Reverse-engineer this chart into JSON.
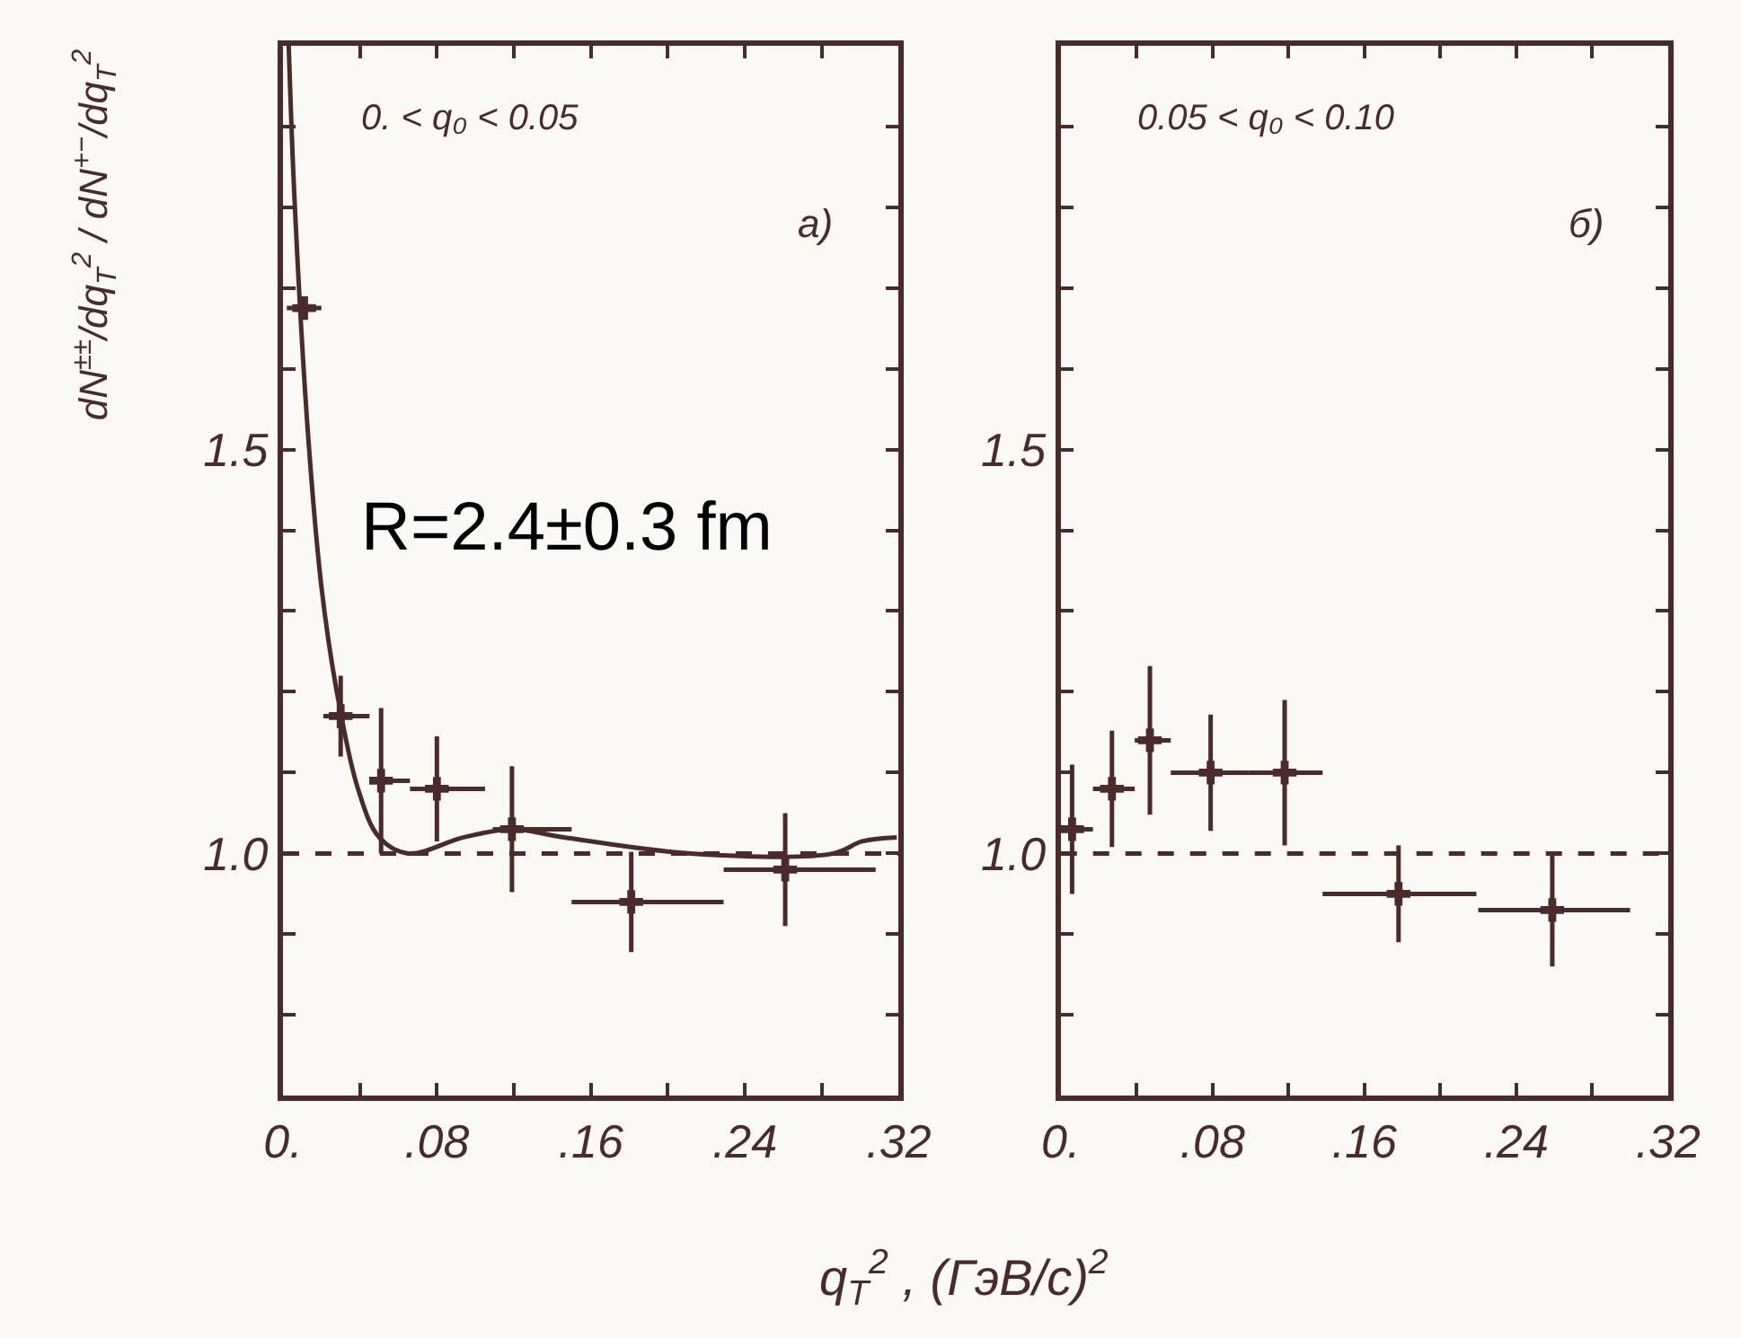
{
  "chart_data": [
    {
      "type": "scatter",
      "ylabel": "dN$^{±±}$/dq$_{T}$$^{2}$ / dN$^{+−}$/dq$_{T}$$^{2}$",
      "xlabel": "q$_{T}$$^{2}$ , (ГэВ/с)$^{2}$",
      "annotations": [
        "0. < q₀ < 0.05",
        "a)",
        "R=2.4±0.3 fm"
      ],
      "xlim": [
        0,
        0.32
      ],
      "ylim": [
        0.7,
        2.0
      ],
      "xticks": [
        {
          "value": 0,
          "label": "0."
        },
        {
          "value": 0.04,
          "label": null
        },
        {
          "value": 0.08,
          "label": ".08"
        },
        {
          "value": 0.12,
          "label": null
        },
        {
          "value": 0.16,
          "label": ".16"
        },
        {
          "value": 0.2,
          "label": null
        },
        {
          "value": 0.24,
          "label": ".24"
        },
        {
          "value": 0.28,
          "label": null
        },
        {
          "value": 0.32,
          "label": ".32"
        }
      ],
      "yticks": [
        {
          "value": 0.8,
          "label": null
        },
        {
          "value": 0.9,
          "label": null
        },
        {
          "value": 1.0,
          "label": "1.0"
        },
        {
          "value": 1.1,
          "label": null
        },
        {
          "value": 1.2,
          "label": null
        },
        {
          "value": 1.3,
          "label": null
        },
        {
          "value": 1.4,
          "label": null
        },
        {
          "value": 1.5,
          "label": "1.5"
        },
        {
          "value": 1.6,
          "label": null
        },
        {
          "value": 1.7,
          "label": null
        },
        {
          "value": 1.8,
          "label": null
        },
        {
          "value": 1.9,
          "label": null
        }
      ],
      "ref_lines": [
        {
          "axis": "y",
          "value": 1.0,
          "label": null,
          "color": "#4a2a2a",
          "line_style": "dashed"
        }
      ],
      "grid": false,
      "series": [
        {
          "marker": "cross",
          "color": "#4a2a2a",
          "x": [
            0.011,
            0.03,
            0.051,
            0.08,
            0.119,
            0.181,
            0.261
          ],
          "values": [
            1.675,
            1.17,
            1.09,
            1.08,
            1.03,
            0.94,
            0.98
          ],
          "errors": [
            null,
            0.05,
            0.09,
            0.065,
            0.078,
            0.062,
            0.07
          ],
          "xerrors": [
            [
              0.002,
              0.02
            ],
            [
              0.021,
              0.045
            ],
            [
              0.045,
              0.066
            ],
            [
              0.066,
              0.105
            ],
            [
              0.109,
              0.15
            ],
            [
              0.15,
              0.229
            ],
            [
              0.229,
              0.308
            ]
          ]
        },
        {
          "type": "line",
          "marker": "none",
          "color": "#4a2a2a",
          "line_style": "solid",
          "x": [
            0.003,
            0.006,
            0.013,
            0.02,
            0.028,
            0.039,
            0.05,
            0.065,
            0.094,
            0.119,
            0.146,
            0.212,
            0.286,
            0.301,
            0.319
          ],
          "values": [
            2.0,
            1.81,
            1.52,
            1.33,
            1.2,
            1.08,
            1.02,
            1.0,
            1.02,
            1.03,
            1.02,
            1.0,
            1.0,
            1.015,
            1.02
          ]
        }
      ]
    },
    {
      "type": "scatter",
      "annotations": [
        "0.05 < q₀ < 0.10",
        "б)"
      ],
      "xlim": [
        0,
        0.32
      ],
      "ylim": [
        0.7,
        2.0
      ],
      "xticks": [
        {
          "value": 0,
          "label": "0."
        },
        {
          "value": 0.04,
          "label": null
        },
        {
          "value": 0.08,
          "label": ".08"
        },
        {
          "value": 0.12,
          "label": null
        },
        {
          "value": 0.16,
          "label": ".16"
        },
        {
          "value": 0.2,
          "label": null
        },
        {
          "value": 0.24,
          "label": ".24"
        },
        {
          "value": 0.28,
          "label": null
        },
        {
          "value": 0.32,
          "label": ".32"
        }
      ],
      "yticks": [
        {
          "value": 0.8,
          "label": null
        },
        {
          "value": 0.9,
          "label": null
        },
        {
          "value": 1.0,
          "label": "1.0"
        },
        {
          "value": 1.1,
          "label": null
        },
        {
          "value": 1.2,
          "label": null
        },
        {
          "value": 1.3,
          "label": null
        },
        {
          "value": 1.4,
          "label": null
        },
        {
          "value": 1.5,
          "label": "1.5"
        },
        {
          "value": 1.6,
          "label": null
        },
        {
          "value": 1.7,
          "label": null
        },
        {
          "value": 1.8,
          "label": null
        },
        {
          "value": 1.9,
          "label": null
        }
      ],
      "ref_lines": [
        {
          "axis": "y",
          "value": 1.0,
          "label": null,
          "color": "#4a2a2a",
          "line_style": "dashed"
        }
      ],
      "marker": "cross",
      "grid": false,
      "series": [
        {
          "color": "#4a2a2a",
          "x": [
            0.006,
            0.027,
            0.047,
            0.079,
            0.118,
            0.178,
            0.259
          ],
          "values": [
            1.03,
            1.08,
            1.14,
            1.1,
            1.1,
            0.95,
            0.93
          ],
          "errors": [
            0.08,
            0.072,
            0.092,
            0.072,
            0.09,
            0.06,
            0.07
          ],
          "xerrors": [
            [
              0.0,
              0.017
            ],
            [
              0.017,
              0.039
            ],
            [
              0.039,
              0.058
            ],
            [
              0.058,
              0.099
            ],
            [
              0.099,
              0.138
            ],
            [
              0.138,
              0.219
            ],
            [
              0.22,
              0.3
            ]
          ]
        }
      ]
    }
  ]
}
